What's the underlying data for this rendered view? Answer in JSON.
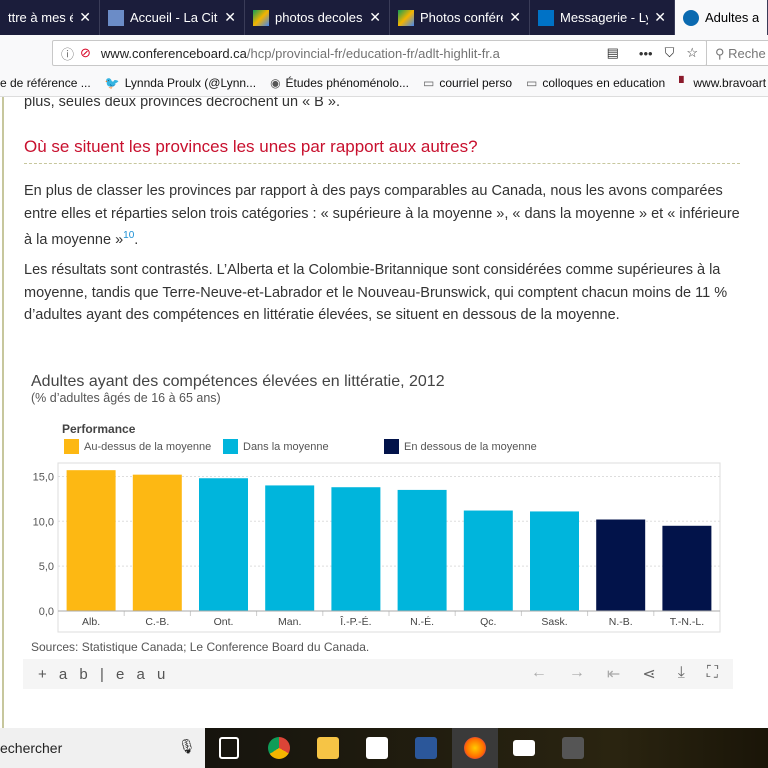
{
  "browser": {
    "tabs": [
      {
        "title": "ttre à mes étu",
        "icon": "page-icon",
        "active": false
      },
      {
        "title": "Accueil - La Cité",
        "icon": "site-icon",
        "active": false
      },
      {
        "title": "photos decoles",
        "icon": "google-drive-icon",
        "active": false
      },
      {
        "title": "Photos conférer",
        "icon": "google-drive-icon",
        "active": false
      },
      {
        "title": "Messagerie - Ly",
        "icon": "mail-icon",
        "active": false
      },
      {
        "title": "Adultes aya",
        "icon": "conferenceboard-icon",
        "active": true
      }
    ],
    "url_domain": "www.conferenceboard.ca",
    "url_path": "/hcp/provincial-fr/education-fr/adlt-highlit-fr.a",
    "search_placeholder": "Reche",
    "bookmarks": [
      "e de référence ...",
      "Lynnda Proulx (@Lynn...",
      "Études phénoménolo...",
      "courriel perso",
      "colloques en education",
      "www.bravoart"
    ]
  },
  "article": {
    "intro_tail": "plus, seules deux provinces décrochent un « B ».",
    "heading": "Où se situent les provinces les unes par rapport aux autres?",
    "para1": "En plus de classer les provinces par rapport à des pays comparables au Canada, nous les avons comparées entre elles et réparties selon trois catégories : « supérieure à la moyenne », « dans la moyenne » et « inférieure à la moyenne »",
    "para1_footnote": "10",
    "para1_end": ".",
    "para2": "Les résultats sont contrastés. L’Alberta et la Colombie-Britannique sont considérées comme supérieures à la moyenne, tandis que Terre-Neuve-et-Labrador et le Nouveau-Brunswick, qui comptent chacun moins de 11 % d’adultes ayant des compétences en littératie élevées, se situent en dessous de la moyenne."
  },
  "chart_data": {
    "type": "bar",
    "title": "Adultes ayant des compétences élevées en littératie, 2012",
    "subtitle": "(% d’adultes âgés de 16 à 65 ans)",
    "legend_title": "Performance",
    "legend": [
      {
        "name": "Au-dessus de la moyenne",
        "color": "#fdb813"
      },
      {
        "name": "Dans la moyenne",
        "color": "#00b5dc"
      },
      {
        "name": "En dessous de la moyenne",
        "color": "#02134a"
      }
    ],
    "categories": [
      "Alb.",
      "C.-B.",
      "Ont.",
      "Man.",
      "Î.-P.-É.",
      "N.-É.",
      "Qc.",
      "Sask.",
      "N.-B.",
      "T.-N.-L."
    ],
    "values": [
      15.7,
      15.2,
      14.8,
      14.0,
      13.8,
      13.5,
      11.2,
      11.1,
      10.2,
      9.5
    ],
    "groups": [
      0,
      0,
      1,
      1,
      1,
      1,
      1,
      1,
      2,
      2
    ],
    "yticks": [
      "0,0",
      "5,0",
      "10,0",
      "15,0"
    ],
    "ytick_values": [
      0,
      5,
      10,
      15
    ],
    "ylim": [
      0,
      16.5
    ],
    "grid": true,
    "legend_position": "top-left",
    "source": "Sources: Statistique Canada;  Le Conference Board du Canada."
  },
  "tableau": {
    "logo": "+ a b | e a u",
    "controls": [
      "undo-icon",
      "redo-icon",
      "revert-icon",
      "share-icon",
      "download-icon",
      "fullscreen-icon"
    ]
  },
  "taskbar": {
    "search_text": "echercher",
    "apps": [
      "task-view-icon",
      "chrome-icon",
      "file-explorer-icon",
      "store-icon",
      "word-icon",
      "firefox-icon",
      "mail-icon",
      "app-icon"
    ]
  }
}
